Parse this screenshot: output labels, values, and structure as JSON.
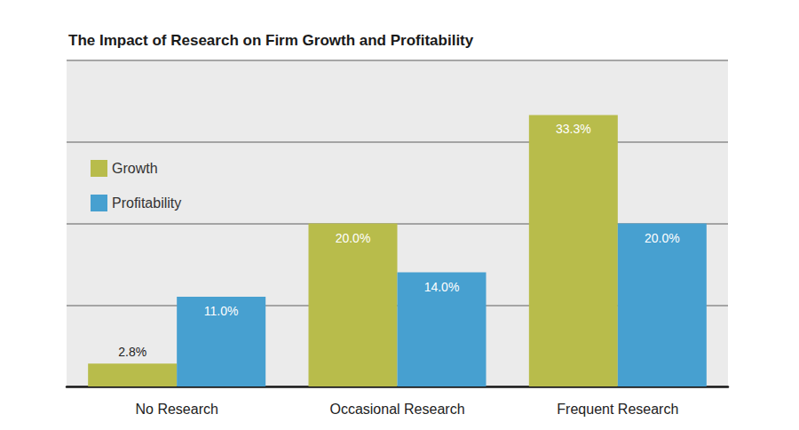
{
  "chart_data": {
    "type": "bar",
    "title": "The Impact of Research on Firm Growth and Profitability",
    "categories": [
      "No Research",
      "Occasional Research",
      "Frequent Research"
    ],
    "series": [
      {
        "name": "Growth",
        "color": "#b8bc4b",
        "values": [
          2.8,
          20,
          33.3
        ],
        "value_labels": [
          "2.8%",
          "20.0%",
          "33.3%"
        ]
      },
      {
        "name": "Profitability",
        "color": "#47a0d0",
        "values": [
          11,
          14,
          20
        ],
        "value_labels": [
          "11.0%",
          "14.0%",
          "20.0%"
        ]
      }
    ],
    "ylim": [
      0,
      40
    ],
    "yticks": [
      0,
      10,
      20,
      30,
      40
    ],
    "grid": true,
    "legend": "upper left",
    "data_labels": true,
    "tick_labels": "x"
  }
}
